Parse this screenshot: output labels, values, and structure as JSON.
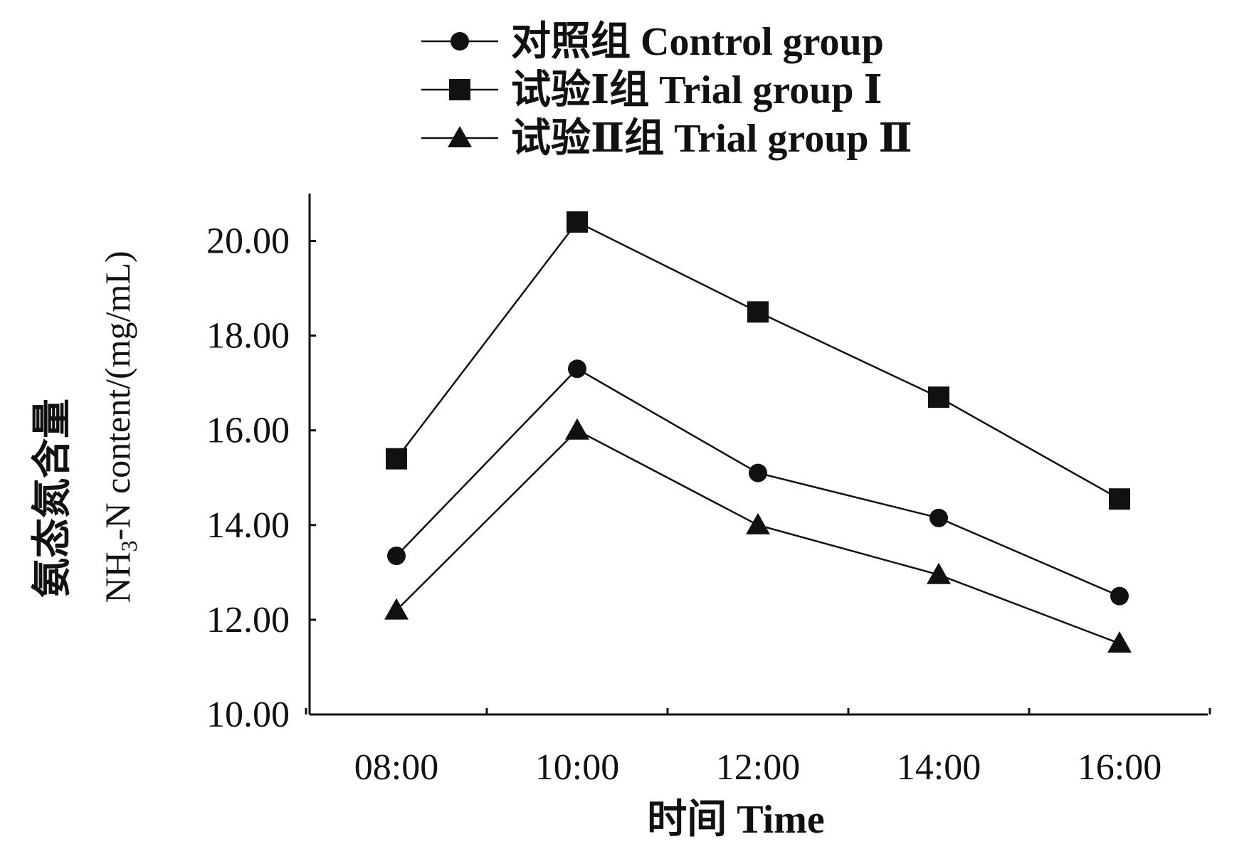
{
  "chart_data": {
    "type": "line",
    "x_label": "时间  Time",
    "y_label_cn": "氨态氮含量",
    "y_label_en_prefix": "NH",
    "y_label_en_sub": "3",
    "y_label_en_suffix": "-N content/(mg/mL)",
    "categories": [
      "08:00",
      "10:00",
      "12:00",
      "14:00",
      "16:00"
    ],
    "ylim": [
      10,
      21
    ],
    "y_ticks": [
      10,
      12,
      14,
      16,
      18,
      20
    ],
    "y_tick_labels": [
      "10.00",
      "12.00",
      "14.00",
      "16.00",
      "18.00",
      "20.00"
    ],
    "legend_position": "top",
    "series": [
      {
        "name": "对照组  Control group",
        "marker": "circle",
        "values": [
          13.35,
          17.3,
          15.1,
          14.15,
          12.5
        ]
      },
      {
        "name": "试验Ⅰ组  Trial group  Ⅰ",
        "marker": "square",
        "values": [
          15.4,
          20.4,
          18.5,
          16.7,
          14.55
        ]
      },
      {
        "name": "试验Ⅱ组  Trial group  Ⅱ",
        "marker": "triangle",
        "values": [
          12.2,
          16.0,
          14.0,
          12.95,
          11.5
        ]
      }
    ]
  }
}
